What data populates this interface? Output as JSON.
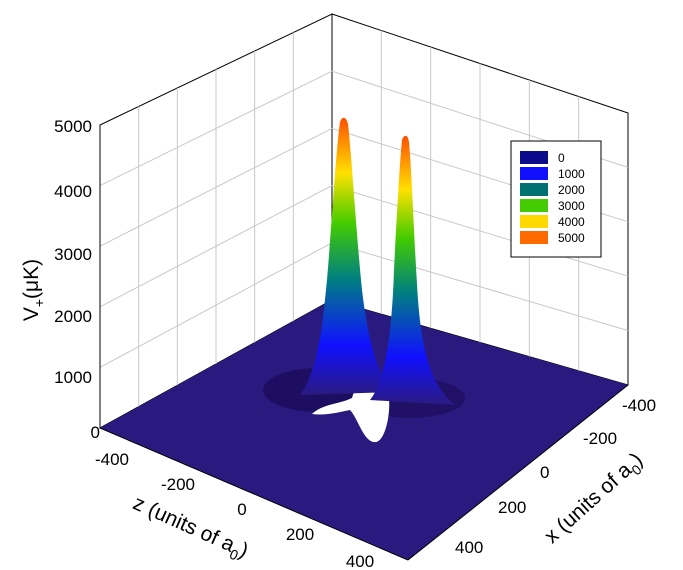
{
  "chart_data": {
    "type": "surface",
    "title": "",
    "zlabel": "V+(μK)",
    "zlabel_parts": {
      "main": "V",
      "sub": "+",
      "rest": "(μK)"
    },
    "xlabel_parts": {
      "main": "x (units of a",
      "sub": "0",
      "rest": ")"
    },
    "ylabel_parts": {
      "main": "z (units of a",
      "sub": "0",
      "rest": ")"
    },
    "x_ticks": [
      "-400",
      "-200",
      "0",
      "200",
      "400"
    ],
    "z_ticks": [
      "-400",
      "-200",
      "0",
      "200",
      "400"
    ],
    "v_ticks": [
      "0",
      "1000",
      "2000",
      "3000",
      "4000",
      "5000"
    ],
    "xlim": [
      -450,
      450
    ],
    "zlim": [
      -450,
      450
    ],
    "vlim": [
      0,
      5000
    ],
    "grid": true,
    "legend_position": "top-right",
    "legend": [
      {
        "label": "0",
        "color": "#0a0a8a"
      },
      {
        "label": "1000",
        "color": "#1010ff"
      },
      {
        "label": "2000",
        "color": "#007070"
      },
      {
        "label": "3000",
        "color": "#44cc00"
      },
      {
        "label": "4000",
        "color": "#ffd800"
      },
      {
        "label": "5000",
        "color": "#ff6a00"
      }
    ],
    "series": [
      {
        "peak_value": 5000,
        "x": -60,
        "z": 0
      },
      {
        "peak_value": 4800,
        "x": 60,
        "z": 0
      }
    ]
  }
}
